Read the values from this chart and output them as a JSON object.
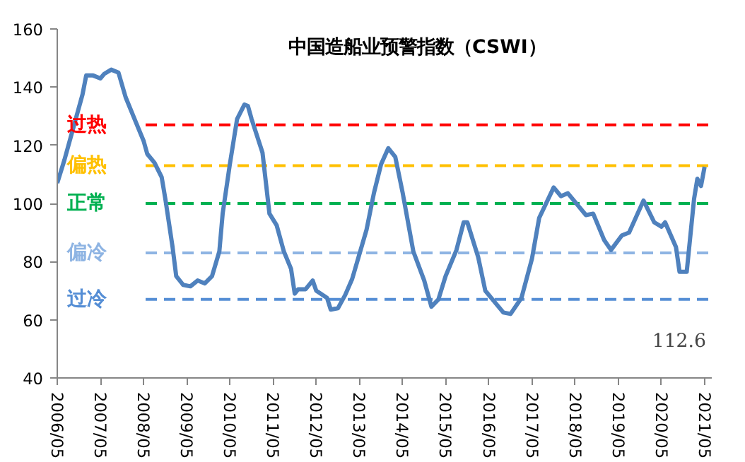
{
  "chart_data": {
    "type": "line",
    "title": "中国造船业预警指数（CSWI）",
    "x": [
      "2006-05",
      "2006-07",
      "2006-10",
      "2006-12",
      "2007-01",
      "2007-03",
      "2007-05",
      "2007-06",
      "2007-08",
      "2007-10",
      "2007-12",
      "2008-03",
      "2008-05",
      "2008-06",
      "2008-08",
      "2008-10",
      "2008-11",
      "2009-01",
      "2009-02",
      "2009-04",
      "2009-06",
      "2009-08",
      "2009-10",
      "2009-12",
      "2010-02",
      "2010-03",
      "2010-05",
      "2010-07",
      "2010-09",
      "2010-10",
      "2010-11",
      "2011-02",
      "2011-04",
      "2011-06",
      "2011-08",
      "2011-10",
      "2011-11",
      "2011-12",
      "2012-02",
      "2012-04",
      "2012-05",
      "2012-08",
      "2012-09",
      "2012-11",
      "2013-01",
      "2013-03",
      "2013-07",
      "2013-09",
      "2013-11",
      "2014-01",
      "2014-03",
      "2014-05",
      "2014-08",
      "2014-11",
      "2015-01",
      "2015-03",
      "2015-05",
      "2015-08",
      "2015-10",
      "2015-11",
      "2016-02",
      "2016-04",
      "2016-06",
      "2016-09",
      "2016-11",
      "2017-02",
      "2017-05",
      "2017-07",
      "2017-11",
      "2018-01",
      "2018-03",
      "2018-05",
      "2018-08",
      "2018-10",
      "2019-01",
      "2019-03",
      "2019-06",
      "2019-08",
      "2019-12",
      "2020-03",
      "2020-05",
      "2020-06",
      "2020-09",
      "2020-10",
      "2020-12",
      "2021-02",
      "2021-03",
      "2021-04",
      "2021-05"
    ],
    "series": [
      {
        "color": "#4f81bd",
        "values": [
          107,
          115,
          128.5,
          137.5,
          144,
          144,
          143,
          144.5,
          146,
          145,
          136.5,
          127.5,
          121.5,
          117,
          114,
          109,
          101.5,
          85,
          75,
          72,
          71.5,
          73.5,
          72.5,
          75,
          83.5,
          96.5,
          113.5,
          129,
          134,
          133.5,
          129,
          117.5,
          96.5,
          92.5,
          83.5,
          77.5,
          69,
          70.5,
          70.5,
          73.5,
          70,
          67.5,
          63.5,
          64,
          68.5,
          74,
          91,
          103.5,
          113.5,
          119,
          116,
          104,
          83.5,
          73.5,
          64.5,
          67,
          75,
          84,
          93.5,
          93.5,
          81.5,
          70,
          67,
          62.5,
          62,
          67.5,
          81,
          95,
          105.5,
          102.5,
          103.5,
          100.5,
          96,
          96.5,
          87.5,
          84,
          89,
          90,
          101,
          93.5,
          92,
          93.5,
          85,
          76.5,
          76.5,
          101.5,
          108.5,
          106,
          112.6
        ]
      }
    ],
    "xlim": [
      "2006-05",
      "2021-07"
    ],
    "xticks": [
      {
        "value": "2006-05",
        "label": "2006/05"
      },
      {
        "value": "2007-05",
        "label": "2007/05"
      },
      {
        "value": "2008-05",
        "label": "2008/05"
      },
      {
        "value": "2009-05",
        "label": "2009/05"
      },
      {
        "value": "2010-05",
        "label": "2010/05"
      },
      {
        "value": "2011-05",
        "label": "2011/05"
      },
      {
        "value": "2012-05",
        "label": "2012/05"
      },
      {
        "value": "2013-05",
        "label": "2013/05"
      },
      {
        "value": "2014-05",
        "label": "2014/05"
      },
      {
        "value": "2015-05",
        "label": "2015/05"
      },
      {
        "value": "2016-05",
        "label": "2016/05"
      },
      {
        "value": "2017-05",
        "label": "2017/05"
      },
      {
        "value": "2018-05",
        "label": "2018/05"
      },
      {
        "value": "2019-05",
        "label": "2019/05"
      },
      {
        "value": "2020-05",
        "label": "2020/05"
      },
      {
        "value": "2021-05",
        "label": "2021/05"
      }
    ],
    "ylim": [
      40,
      160
    ],
    "yticks": [
      40,
      60,
      80,
      100,
      120,
      140,
      160
    ],
    "ref_lines": [
      {
        "axis": "y",
        "value": 127,
        "label": "过热",
        "color": "#ff0000",
        "line_style": "dashed"
      },
      {
        "axis": "y",
        "value": 113,
        "label": "偏热",
        "color": "#ffc000",
        "line_style": "dashed"
      },
      {
        "axis": "y",
        "value": 100,
        "label": "正常",
        "color": "#00b050",
        "line_style": "dashed"
      },
      {
        "axis": "y",
        "value": 83,
        "label": "偏冷",
        "color": "#8eb4e3",
        "line_style": "dashed"
      },
      {
        "axis": "y",
        "value": 67,
        "label": "过冷",
        "color": "#558ed5",
        "line_style": "dashed"
      }
    ],
    "annotations": [
      "112.6"
    ],
    "grid": false,
    "marker": "none",
    "line_style": "solid"
  }
}
